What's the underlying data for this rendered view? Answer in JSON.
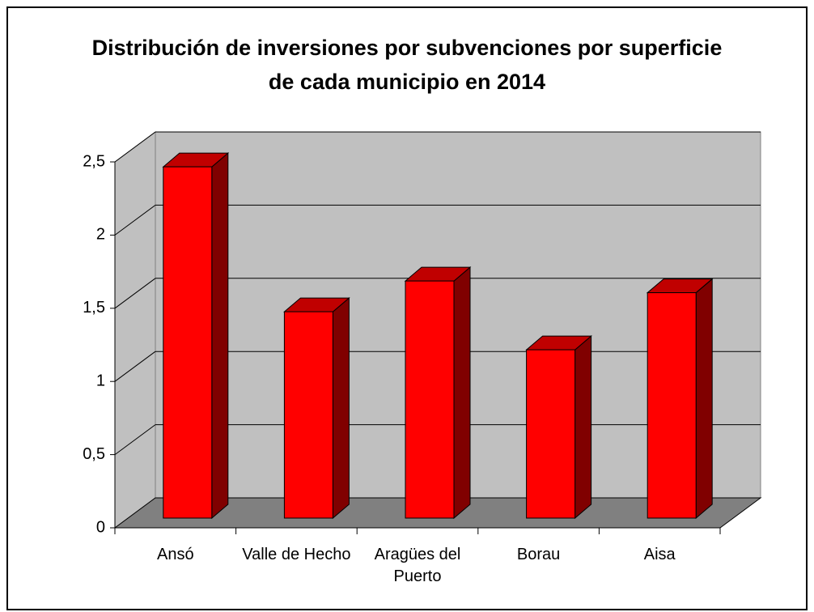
{
  "chart_data": {
    "type": "bar3d",
    "title": "Distribución de inversiones por subvenciones por superficie de cada municipio en 2014",
    "categories": [
      "Ansó",
      "Valle de Hecho",
      "Aragües del Puerto",
      "Borau",
      "Aisa"
    ],
    "values": [
      2.4,
      1.41,
      1.62,
      1.15,
      1.54
    ],
    "color": "#ff0000",
    "ylim": [
      0,
      2.5
    ],
    "yticks": [
      0,
      {
        "value": 0.5,
        "label": "0,5"
      },
      1,
      {
        "value": 1.5,
        "label": "1,5"
      },
      2,
      {
        "value": 2.5,
        "label": "2,5"
      }
    ],
    "grid": true
  }
}
